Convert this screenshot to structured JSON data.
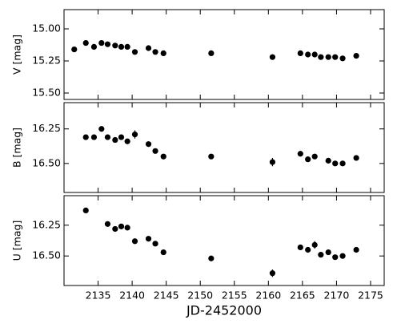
{
  "chart_data": [
    {
      "type": "scatter",
      "ylabel": "V [mag]",
      "color": "#000000",
      "x": [
        2131.5,
        2133.2,
        2134.4,
        2135.5,
        2136.4,
        2137.5,
        2138.4,
        2139.3,
        2140.4,
        2142.4,
        2143.4,
        2144.6,
        2151.6,
        2160.6,
        2164.7,
        2165.8,
        2166.8,
        2167.7,
        2168.8,
        2169.8,
        2170.9,
        2172.9
      ],
      "values": [
        15.16,
        15.11,
        15.14,
        15.11,
        15.12,
        15.13,
        15.14,
        15.14,
        15.18,
        15.15,
        15.18,
        15.19,
        15.19,
        15.22,
        15.19,
        15.2,
        15.2,
        15.22,
        15.22,
        15.22,
        15.23,
        15.21
      ],
      "errors": [
        0.01,
        0.01,
        0.01,
        0.01,
        0.01,
        0.01,
        0.01,
        0.01,
        0.01,
        0.01,
        0.01,
        0.01,
        0.01,
        0.01,
        0.01,
        0.01,
        0.01,
        0.01,
        0.01,
        0.01,
        0.01,
        0.01
      ],
      "xlim": [
        2130,
        2177
      ],
      "xticks": [
        2135,
        2140,
        2145,
        2150,
        2155,
        2160,
        2165,
        2170,
        2175
      ],
      "ylim": [
        15.55,
        14.85
      ],
      "yticks": [
        {
          "value": 15.0,
          "label": "15.00"
        },
        {
          "value": 15.25,
          "label": "15.25"
        },
        {
          "value": 15.5,
          "label": "15.50"
        }
      ]
    },
    {
      "type": "scatter",
      "ylabel": "B [mag]",
      "color": "#000000",
      "x": [
        2133.2,
        2134.4,
        2135.5,
        2136.4,
        2137.5,
        2138.4,
        2139.3,
        2140.4,
        2142.4,
        2143.4,
        2144.6,
        2151.6,
        2160.6,
        2164.7,
        2165.8,
        2166.8,
        2168.8,
        2169.8,
        2170.9,
        2172.9
      ],
      "values": [
        16.31,
        16.31,
        16.25,
        16.31,
        16.33,
        16.31,
        16.34,
        16.29,
        16.36,
        16.41,
        16.45,
        16.45,
        16.49,
        16.43,
        16.47,
        16.45,
        16.48,
        16.5,
        16.5,
        16.46
      ],
      "errors": [
        0.01,
        0.01,
        0.01,
        0.01,
        0.01,
        0.01,
        0.01,
        0.03,
        0.01,
        0.01,
        0.01,
        0.01,
        0.03,
        0.01,
        0.01,
        0.01,
        0.01,
        0.01,
        0.01,
        0.01
      ],
      "xlim": [
        2130,
        2177
      ],
      "xticks": [
        2135,
        2140,
        2145,
        2150,
        2155,
        2160,
        2165,
        2170,
        2175
      ],
      "ylim": [
        16.71,
        16.06
      ],
      "yticks": [
        16.25,
        {
          "value": 16.5,
          "label": "16.50"
        }
      ]
    },
    {
      "type": "scatter",
      "ylabel": "U [mag]",
      "xlabel": "JD-2452000",
      "color": "#000000",
      "x": [
        2133.2,
        2136.4,
        2137.5,
        2138.4,
        2139.3,
        2140.4,
        2142.4,
        2143.4,
        2144.6,
        2151.6,
        2160.6,
        2164.7,
        2165.8,
        2166.8,
        2167.7,
        2168.8,
        2169.8,
        2170.9,
        2172.9
      ],
      "values": [
        16.13,
        16.24,
        16.28,
        16.26,
        16.27,
        16.38,
        16.36,
        16.4,
        16.47,
        16.52,
        16.64,
        16.43,
        16.45,
        16.41,
        16.49,
        16.47,
        16.51,
        16.5,
        16.45
      ],
      "errors": [
        0.01,
        0.01,
        0.01,
        0.02,
        0.01,
        0.01,
        0.01,
        0.01,
        0.01,
        0.01,
        0.03,
        0.01,
        0.01,
        0.03,
        0.01,
        0.01,
        0.01,
        0.01,
        0.01
      ],
      "xlim": [
        2130,
        2177
      ],
      "xticks": [
        2135,
        2140,
        2145,
        2150,
        2155,
        2160,
        2165,
        2170,
        2175
      ],
      "ylim": [
        16.74,
        16.01
      ],
      "yticks": [
        16.25,
        {
          "value": 16.5,
          "label": "16.50"
        }
      ]
    }
  ]
}
